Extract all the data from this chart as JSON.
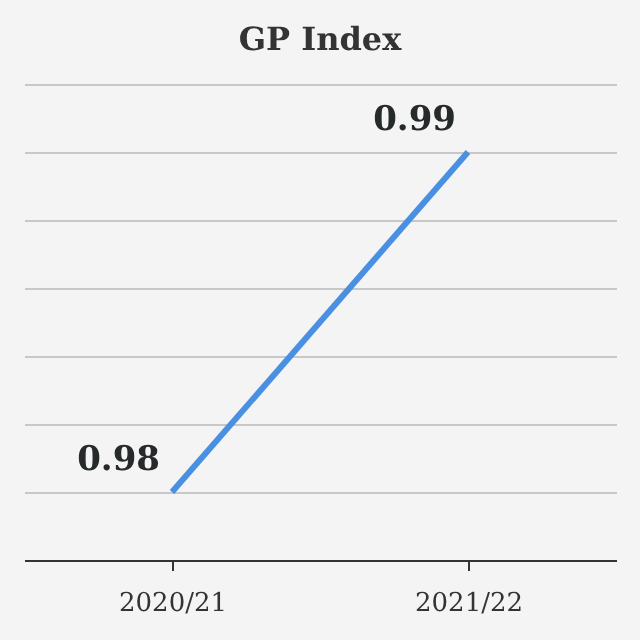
{
  "chart_data": {
    "type": "line",
    "title": "GP Index",
    "categories": [
      "2020/21",
      "2021/22"
    ],
    "series": [
      {
        "color": "#4a90e2",
        "values": [
          0.98,
          0.99
        ]
      }
    ],
    "grid": "y",
    "data_labels": true,
    "marker": "none",
    "line_style": "solid",
    "tick_labels": "x"
  }
}
